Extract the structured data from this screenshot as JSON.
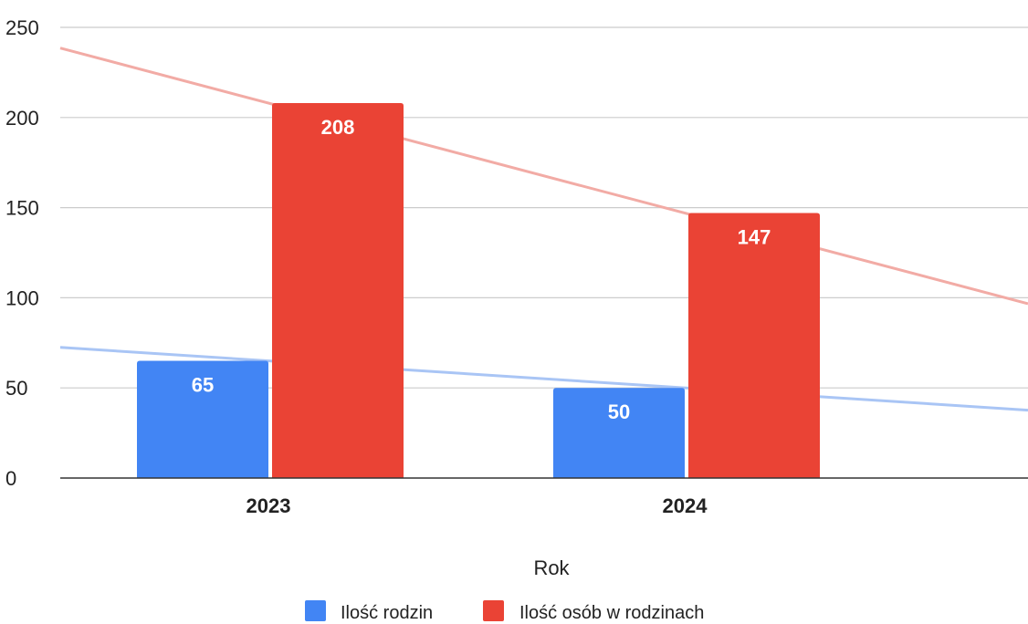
{
  "chart_data": {
    "type": "bar",
    "categories": [
      "2023",
      "2024"
    ],
    "series": [
      {
        "name": "Ilość rodzin",
        "values": [
          65,
          50
        ],
        "color": "#4285f4",
        "trendline_color": "#a9c5f5"
      },
      {
        "name": "Ilość osób w rodzinach",
        "values": [
          208,
          147
        ],
        "color": "#ea4335",
        "trendline_color": "#f2aba5"
      }
    ],
    "xlabel": "Rok",
    "ylabel": "",
    "ylim": [
      0,
      250
    ],
    "yticks": [
      0,
      50,
      100,
      150,
      200,
      250
    ],
    "trendlines": true,
    "data_labels": true,
    "grid": true,
    "legend": "bottom"
  }
}
